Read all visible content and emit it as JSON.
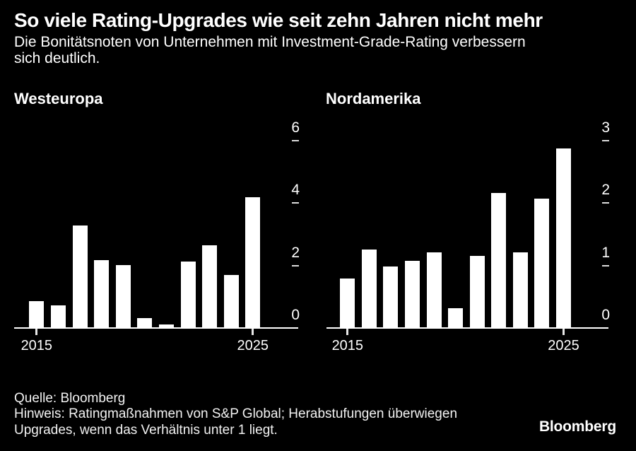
{
  "header": {
    "title": "So viele Rating-Upgrades wie seit zehn Jahren nicht mehr",
    "subtitle_line1": "Die Bonitätsnoten von Unternehmen mit Investment-Grade-Rating verbessern",
    "subtitle_line2": "sich deutlich."
  },
  "footer": {
    "source": "Quelle: Bloomberg",
    "note_line1": "Hinweis: Ratingmaßnahmen von S&P Global; Herabstufungen überwiegen",
    "note_line2": "Upgrades, wenn das Verhältnis unter 1 liegt.",
    "logo": "Bloomberg"
  },
  "colors": {
    "background": "#000000",
    "bar": "#ffffff",
    "text": "#ffffff",
    "axis": "#ffffff",
    "tick": "#dcdcdc"
  },
  "chart_data": [
    {
      "type": "bar",
      "title": "Westeuropa",
      "x": [
        2015,
        2016,
        2017,
        2018,
        2019,
        2020,
        2021,
        2022,
        2023,
        2024,
        2025
      ],
      "values": [
        0.86,
        0.72,
        3.28,
        2.17,
        2.02,
        0.31,
        0.11,
        2.12,
        2.66,
        1.7,
        4.18
      ],
      "xlabel": "",
      "ylabel": "",
      "ylim": [
        0,
        6
      ],
      "yticks": [
        0,
        2,
        4,
        6
      ],
      "xticks": [
        2015,
        2025
      ],
      "grid": false,
      "legend": null,
      "y_axis_side": "right"
    },
    {
      "type": "bar",
      "title": "Nordamerika",
      "x": [
        2015,
        2016,
        2017,
        2018,
        2019,
        2020,
        2021,
        2022,
        2023,
        2024,
        2025
      ],
      "values": [
        0.79,
        1.26,
        0.99,
        1.07,
        1.21,
        0.32,
        1.16,
        2.16,
        1.21,
        2.07,
        2.87
      ],
      "xlabel": "",
      "ylabel": "",
      "ylim": [
        0,
        3
      ],
      "yticks": [
        0,
        1,
        2,
        3
      ],
      "xticks": [
        2015,
        2025
      ],
      "grid": false,
      "legend": null,
      "y_axis_side": "right"
    }
  ]
}
